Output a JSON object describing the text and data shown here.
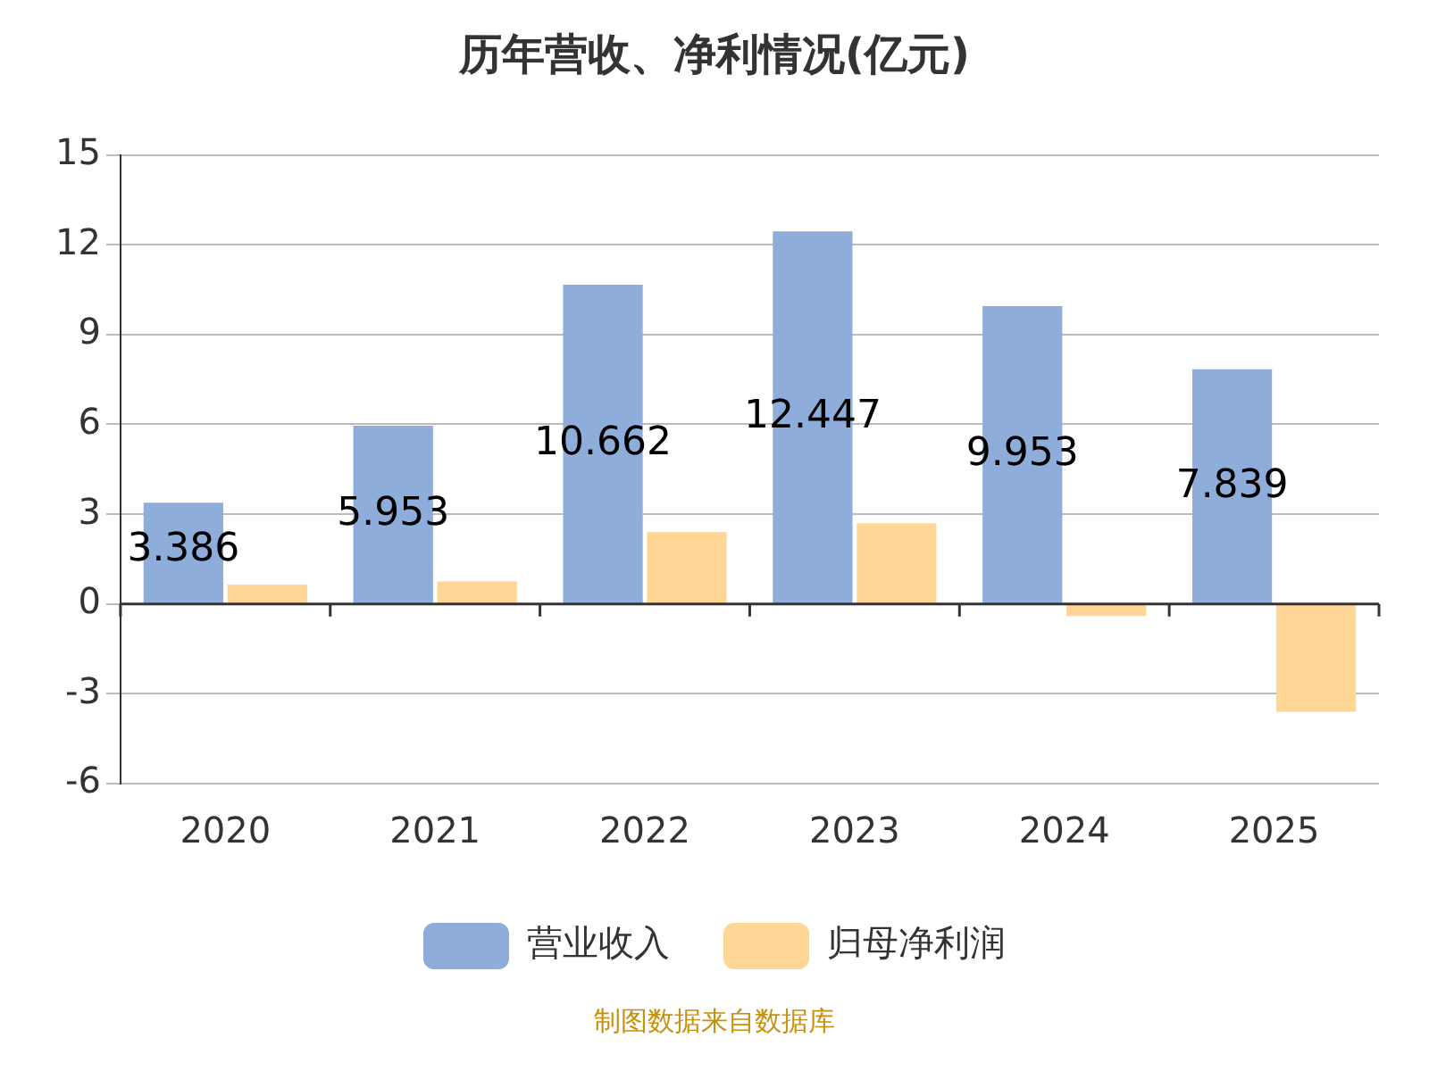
{
  "chart_data": {
    "type": "bar",
    "title": "历年营收、净利情况(亿元)",
    "categories": [
      "2020",
      "2021",
      "2022",
      "2023",
      "2024",
      "2025"
    ],
    "series": [
      {
        "name": "营业收入",
        "color": "#8eadda",
        "values": [
          3.386,
          5.953,
          10.662,
          12.447,
          9.953,
          7.839
        ],
        "value_labels": [
          "3.386",
          "5.953",
          "10.662",
          "12.447",
          "9.953",
          "7.839"
        ]
      },
      {
        "name": "归母净利润",
        "color": "#ffd695",
        "values": [
          0.65,
          0.75,
          2.4,
          2.7,
          -0.4,
          -3.6
        ]
      }
    ],
    "ylim": [
      -6,
      15
    ],
    "yticks": [
      -6,
      -3,
      0,
      3,
      6,
      9,
      12,
      15
    ],
    "grid": "y",
    "legend": "bottom",
    "annotations": [
      "制图数据来自数据库"
    ]
  }
}
